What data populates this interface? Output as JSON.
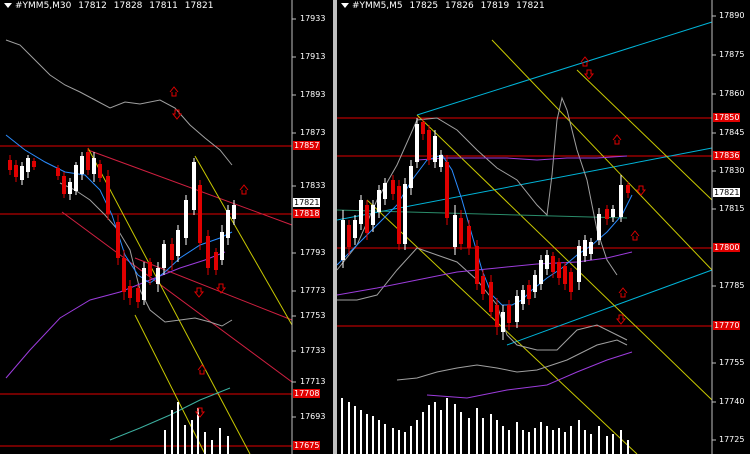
{
  "charts": [
    {
      "symbol": "#YMM5,M30",
      "ohlc": [
        "17812",
        "17828",
        "17811",
        "17821"
      ],
      "price_ticks": [
        "17933",
        "17913",
        "17893",
        "17873",
        "17833",
        "17793",
        "17773",
        "17753",
        "17733",
        "17713",
        "17693"
      ],
      "level_labels": [
        "17857",
        "17818",
        "17708",
        "17675"
      ],
      "current_price": "17821"
    },
    {
      "symbol": "#YMM5,M5",
      "ohlc": [
        "17825",
        "17826",
        "17819",
        "17821"
      ],
      "price_ticks": [
        "17890",
        "17875",
        "17860",
        "17845",
        "17830",
        "17815",
        "17785",
        "17755",
        "17740",
        "17725"
      ],
      "level_labels": [
        "17850",
        "17836",
        "17800",
        "17770"
      ],
      "current_price": "17821"
    }
  ],
  "colors": {
    "background": "#000000",
    "bull_candle": "#ffffff",
    "bear_candle": "#e00000",
    "level_line": "#e00000",
    "channel_yellow": "#c8c800",
    "channel_cyan": "#00b4d8",
    "moving_average_purple": "#9c3cdc",
    "moving_average_blue": "#2a8cff",
    "envelope_gray": "#a0a0a0",
    "arrow_red": "#e00000"
  }
}
